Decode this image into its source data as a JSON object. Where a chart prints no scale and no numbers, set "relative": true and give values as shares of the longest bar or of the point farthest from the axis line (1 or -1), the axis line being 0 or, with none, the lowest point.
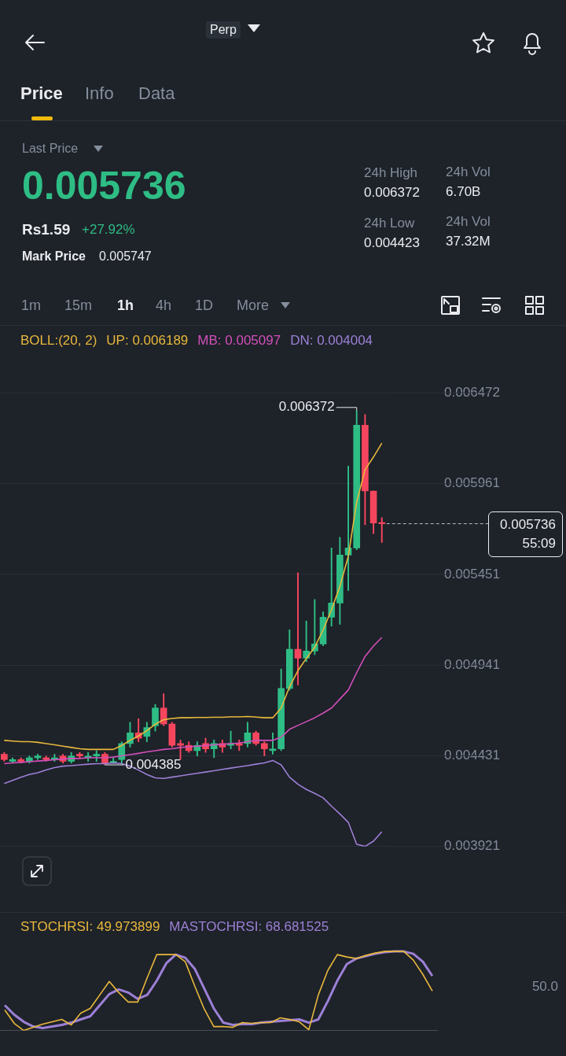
{
  "chart_data": [
    {
      "type": "other",
      "annotations": [
        "Perp",
        "Price",
        "Info",
        "Data",
        "Last Price",
        "0.005736",
        "Rs1.59",
        "+27.92%",
        "Mark Price",
        "0.005747",
        "24h High",
        "0.006372",
        "24h Low",
        "0.004423",
        "24h Vol",
        "6.70B",
        "24h Vol",
        "37.32M",
        "1m",
        "15m",
        "1h",
        "4h",
        "1D",
        "More"
      ]
    },
    {
      "type": "candlestick",
      "legend_title": "BOLL:(20, 2)",
      "tick_labels": "y",
      "grid": "y",
      "marker": "none",
      "categories": [
        null,
        null,
        null,
        null,
        null,
        null,
        null,
        null,
        null,
        null,
        null,
        null,
        null,
        null,
        null,
        null,
        null,
        null,
        null,
        null,
        null,
        null,
        null,
        null,
        null,
        null,
        null,
        null,
        null,
        null,
        null,
        null,
        null,
        null,
        null,
        null,
        null,
        null,
        null,
        null,
        null,
        null,
        null,
        null,
        null,
        null
      ],
      "ohlc": [
        [
          0.00444,
          0.00445,
          0.0044,
          0.00441
        ],
        [
          0.0044,
          0.00442,
          0.00439,
          0.00441
        ],
        [
          0.00441,
          0.00442,
          0.00439,
          0.0044
        ],
        [
          0.0044,
          0.00443,
          0.00439,
          0.00442
        ],
        [
          0.00442,
          0.00444,
          0.00441,
          0.00443
        ],
        [
          0.00442,
          0.00443,
          0.0044,
          0.00441
        ],
        [
          0.00441,
          0.00444,
          0.0044,
          0.00442
        ],
        [
          0.00443,
          0.00444,
          0.00439,
          0.0044
        ],
        [
          0.0044,
          0.00445,
          0.00439,
          0.00443
        ],
        [
          0.00444,
          0.00445,
          0.00442,
          0.00443
        ],
        [
          0.00442,
          0.00445,
          0.0044,
          0.00443
        ],
        [
          0.00443,
          0.00446,
          0.0044,
          0.00444
        ],
        [
          0.00444,
          0.00445,
          0.00438,
          0.00439
        ],
        [
          0.00439,
          0.00442,
          0.00439,
          0.0044
        ],
        [
          0.00441,
          0.00451,
          0.004385,
          0.0045
        ],
        [
          0.0045,
          0.00462,
          0.00448,
          0.00456
        ],
        [
          0.00456,
          0.00464,
          0.00451,
          0.00453
        ],
        [
          0.00454,
          0.00462,
          0.00451,
          0.00459
        ],
        [
          0.0046,
          0.00472,
          0.00457,
          0.0047
        ],
        [
          0.0047,
          0.00478,
          0.0046,
          0.00461
        ],
        [
          0.00461,
          0.00462,
          0.00448,
          0.00449
        ],
        [
          0.0045,
          0.00452,
          0.00441,
          0.00449
        ],
        [
          0.00449,
          0.00451,
          0.00445,
          0.00446
        ],
        [
          0.00446,
          0.00451,
          0.00443,
          0.00449
        ],
        [
          0.0045,
          0.00453,
          0.00445,
          0.00447
        ],
        [
          0.00447,
          0.00452,
          0.00442,
          0.0045
        ],
        [
          0.0045,
          0.00452,
          0.00445,
          0.00448
        ],
        [
          0.00449,
          0.00457,
          0.00447,
          0.0045
        ],
        [
          0.0045,
          0.00452,
          0.00446,
          0.00449
        ],
        [
          0.0045,
          0.00462,
          0.00448,
          0.00456
        ],
        [
          0.00456,
          0.00457,
          0.00449,
          0.0045
        ],
        [
          0.0045,
          0.00451,
          0.00443,
          0.00447
        ],
        [
          0.00446,
          0.00456,
          0.00444,
          0.00447
        ],
        [
          0.00447,
          0.00492,
          0.00446,
          0.00481
        ],
        [
          0.00481,
          0.00514,
          0.0048,
          0.00503
        ],
        [
          0.00503,
          0.00546,
          0.00483,
          0.00498
        ],
        [
          0.00498,
          0.00519,
          0.00496,
          0.00502
        ],
        [
          0.00502,
          0.00531,
          0.005,
          0.00506
        ],
        [
          0.00506,
          0.00524,
          0.00505,
          0.00521
        ],
        [
          0.00521,
          0.0056,
          0.00516,
          0.00529
        ],
        [
          0.00529,
          0.00566,
          0.00517,
          0.00556
        ],
        [
          0.00556,
          0.00606,
          0.00536,
          0.0056
        ],
        [
          0.0056,
          0.006372,
          0.00559,
          0.00629
        ],
        [
          0.00629,
          0.00635,
          0.00573,
          0.00592
        ],
        [
          0.00592,
          0.00592,
          0.00568,
          0.00574
        ],
        [
          0.00574,
          0.00577,
          0.00563,
          0.005736
        ]
      ],
      "colors": [
        "#f6465d",
        "#2ebd85",
        "#f6465d",
        "#2ebd85",
        "#2ebd85",
        "#f6465d",
        "#2ebd85",
        "#f6465d",
        "#2ebd85",
        "#f6465d",
        "#2ebd85",
        "#2ebd85",
        "#f6465d",
        "#2ebd85",
        "#2ebd85",
        "#2ebd85",
        "#f6465d",
        "#2ebd85",
        "#2ebd85",
        "#f6465d",
        "#f6465d",
        "#f6465d",
        "#f6465d",
        "#2ebd85",
        "#f6465d",
        "#2ebd85",
        "#f6465d",
        "#2ebd85",
        "#f6465d",
        "#2ebd85",
        "#f6465d",
        "#f6465d",
        "#2ebd85",
        "#2ebd85",
        "#2ebd85",
        "#f6465d",
        "#2ebd85",
        "#2ebd85",
        "#2ebd85",
        "#2ebd85",
        "#2ebd85",
        "#2ebd85",
        "#2ebd85",
        "#f6465d",
        "#f6465d",
        "#f6465d"
      ],
      "series": [
        {
          "name": "UP: 0.006189",
          "type": "line",
          "color": "#e8b83c",
          "values": [
            0.004518,
            0.004514,
            0.004511,
            0.004511,
            0.004507,
            0.0045,
            0.004493,
            0.004485,
            0.004478,
            0.004471,
            0.004467,
            0.004467,
            0.004467,
            0.004467,
            0.004489,
            0.004518,
            0.004543,
            0.004572,
            0.004609,
            0.004634,
            0.004641,
            0.004645,
            0.004645,
            0.004647,
            0.004647,
            0.004648,
            0.004648,
            0.00465,
            0.00465,
            0.004652,
            0.004649,
            0.004645,
            0.004645,
            0.0047,
            0.004819,
            0.00491,
            0.004979,
            0.005041,
            0.005139,
            0.005252,
            0.005384,
            0.005553,
            0.005858,
            0.00604,
            0.006111,
            0.006189
          ]
        },
        {
          "name": "MB: 0.005097",
          "type": "line",
          "color": "#d24fba",
          "values": [
            0.004387,
            0.004391,
            0.004394,
            0.004398,
            0.004402,
            0.004405,
            0.004409,
            0.004413,
            0.004416,
            0.004416,
            0.00442,
            0.00442,
            0.00442,
            0.004424,
            0.004431,
            0.004438,
            0.004445,
            0.004453,
            0.00446,
            0.004467,
            0.004471,
            0.004478,
            0.004482,
            0.004485,
            0.004489,
            0.004493,
            0.004496,
            0.0045,
            0.004503,
            0.004511,
            0.004518,
            0.004518,
            0.004518,
            0.004536,
            0.00458,
            0.004602,
            0.004623,
            0.004645,
            0.004671,
            0.0047,
            0.00475,
            0.004801,
            0.004899,
            0.00499,
            0.005048,
            0.005097
          ]
        },
        {
          "name": "DN: 0.004004",
          "type": "line",
          "color": "#9c80d6",
          "values": [
            0.004275,
            0.004293,
            0.004311,
            0.004326,
            0.004336,
            0.004351,
            0.004365,
            0.004373,
            0.004376,
            0.00438,
            0.004384,
            0.004387,
            0.004387,
            0.004391,
            0.004387,
            0.004373,
            0.004351,
            0.004326,
            0.004307,
            0.004304,
            0.004311,
            0.004318,
            0.004326,
            0.004333,
            0.00434,
            0.004347,
            0.004355,
            0.004362,
            0.004369,
            0.004376,
            0.004384,
            0.004391,
            0.004405,
            0.00438,
            0.004311,
            0.004271,
            0.004242,
            0.00422,
            0.004195,
            0.004148,
            0.004104,
            0.004057,
            0.003933,
            0.003922,
            0.003951,
            0.004004
          ]
        }
      ],
      "ylim": [
        0.003921,
        0.006472
      ],
      "yticks": [
        0.003921,
        0.004431,
        0.004941,
        0.005451,
        0.005961,
        0.006472
      ],
      "ref_lines": [
        {
          "axis": "y",
          "value": 0.005736,
          "label": "0.005736",
          "line_style": "dashed"
        }
      ],
      "annotations": [
        "0.006372",
        "0.004385",
        "55:09"
      ]
    },
    {
      "type": "line",
      "relative": true,
      "marker": "none",
      "annotations": [
        "50.0"
      ],
      "categories": [
        null,
        null,
        null,
        null,
        null,
        null,
        null,
        null,
        null,
        null,
        null,
        null,
        null,
        null,
        null,
        null,
        null,
        null,
        null,
        null,
        null,
        null,
        null,
        null,
        null,
        null,
        null,
        null,
        null,
        null,
        null,
        null,
        null,
        null,
        null,
        null,
        null,
        null,
        null,
        null,
        null,
        null,
        null,
        null,
        null,
        null
      ],
      "series": [
        {
          "name": "STOCHRSI: 49.973899",
          "color": "#e8b83c",
          "values": [
            0.26,
            0.09,
            0,
            0.04,
            0.08,
            0.11,
            0.14,
            0.07,
            0.22,
            0.28,
            0.45,
            0.62,
            0.48,
            0.36,
            0.36,
            0.67,
            0.96,
            0.96,
            0.96,
            0.87,
            0.56,
            0.27,
            0.05,
            0.05,
            0.04,
            0.1,
            0.09,
            0.1,
            0.1,
            0.16,
            0.14,
            0.11,
            0.01,
            0.45,
            0.76,
            0.96,
            0.93,
            0.91,
            0.95,
            0.98,
            1,
            1,
            1,
            0.89,
            0.71,
            0.5
          ]
        },
        {
          "name": "MASTOCHRSI: 68.681525",
          "color": "#9c80d6",
          "values": [
            0.32,
            0.2,
            0.11,
            0.05,
            0.03,
            0.05,
            0.07,
            0.1,
            0.14,
            0.18,
            0.32,
            0.46,
            0.52,
            0.48,
            0.4,
            0.45,
            0.63,
            0.85,
            0.96,
            0.92,
            0.78,
            0.53,
            0.28,
            0.1,
            0.07,
            0.08,
            0.08,
            0.1,
            0.11,
            0.12,
            0.13,
            0.14,
            0.1,
            0.14,
            0.37,
            0.63,
            0.84,
            0.91,
            0.94,
            0.97,
            0.99,
            1,
            1,
            0.97,
            0.87,
            0.69
          ]
        }
      ]
    }
  ]
}
